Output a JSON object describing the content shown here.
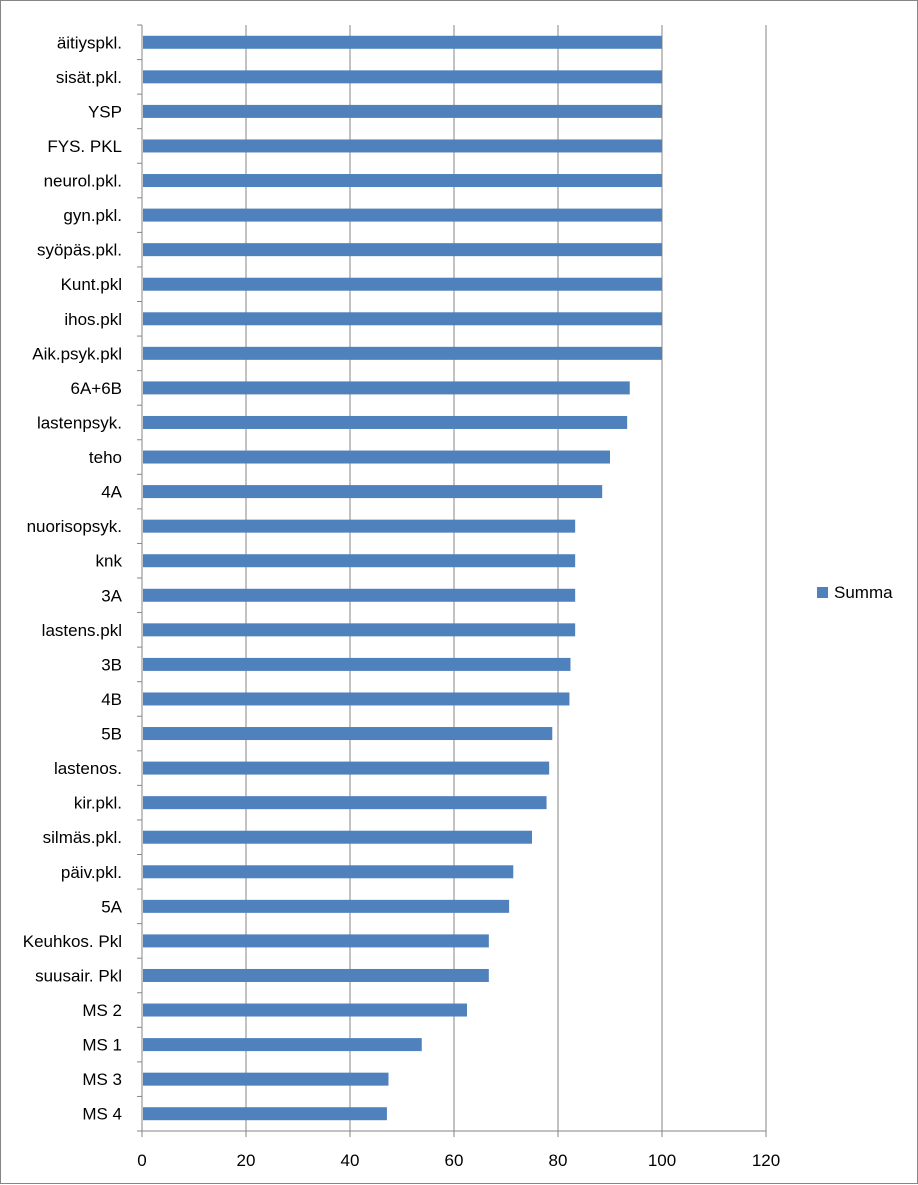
{
  "chart_data": {
    "type": "bar",
    "orientation": "horizontal",
    "title": "",
    "xlabel": "",
    "ylabel": "",
    "categories": [
      "äitiyspkl.",
      "sisät.pkl.",
      "YSP",
      "FYS. PKL",
      "neurol.pkl.",
      "gyn.pkl.",
      "syöpäs.pkl.",
      "Kunt.pkl",
      "ihos.pkl",
      "Aik.psyk.pkl",
      "6A+6B",
      "lastenpsyk.",
      "teho",
      "4A",
      "nuorisopsyk.",
      "knk",
      "3A",
      "lastens.pkl",
      "3B",
      "4B",
      "5B",
      "lastenos.",
      "kir.pkl.",
      "silmäs.pkl.",
      "päiv.pkl.",
      "5A",
      "Keuhkos. Pkl",
      "suusair. Pkl",
      "MS 2",
      "MS 1",
      "MS 3",
      "MS 4"
    ],
    "series": [
      {
        "name": "Summa",
        "color": "#4f81bd",
        "values": [
          100,
          100,
          100,
          100,
          100,
          100,
          100,
          100,
          100,
          100,
          93.8,
          93.3,
          90,
          88.5,
          83.3,
          83.3,
          83.3,
          83.3,
          82.4,
          82.2,
          78.9,
          78.3,
          77.8,
          75,
          71.4,
          70.6,
          66.7,
          66.7,
          62.5,
          53.8,
          47.4,
          47.1
        ]
      }
    ],
    "xlim": [
      0,
      120
    ],
    "xticks": [
      "0",
      "20",
      "40",
      "60",
      "80",
      "100",
      "120"
    ],
    "xtick_values": [
      0,
      20,
      40,
      60,
      80,
      100,
      120
    ],
    "grid": true,
    "legend": {
      "position": "right",
      "entries": [
        "Summa"
      ]
    }
  }
}
